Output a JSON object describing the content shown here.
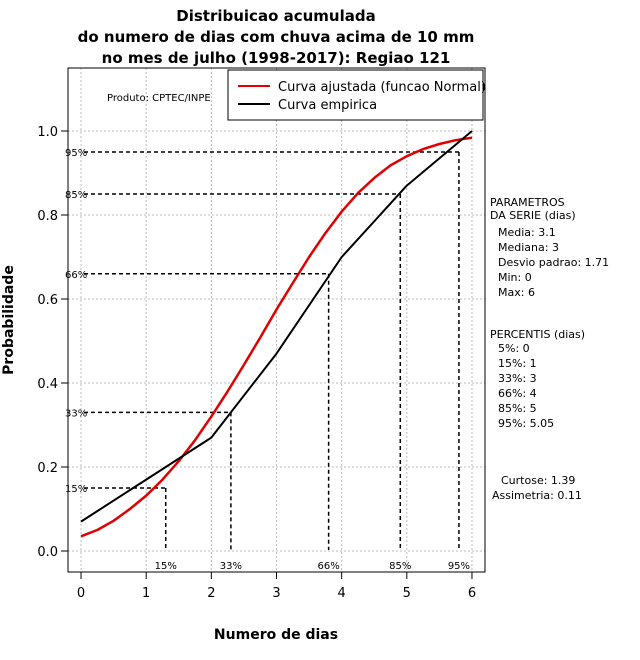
{
  "chart_data": {
    "type": "line",
    "title": [
      "Distribuicao acumulada",
      "do numero de dias com chuva acima de 10 mm",
      "no mes de julho (1998-2017): Regiao 121"
    ],
    "xlabel": "Numero de dias",
    "ylabel": "Probabilidade",
    "xlim": [
      -0.2,
      6.2
    ],
    "ylim": [
      -0.05,
      1.15
    ],
    "xticks": [
      0,
      1,
      2,
      3,
      4,
      5,
      6
    ],
    "xtick_labels": [
      "0",
      "1",
      "2",
      "3",
      "4",
      "5",
      "6"
    ],
    "yticks": [
      0.0,
      0.2,
      0.4,
      0.6,
      0.8,
      1.0
    ],
    "ytick_labels": [
      "0.0",
      "0.2",
      "0.4",
      "0.6",
      "0.8",
      "1.0"
    ],
    "grid": true,
    "producer": "Produto: CPTEC/INPE",
    "legend": {
      "placement": "top-right",
      "entries": [
        {
          "label": "Curva ajustada (funcao Normal)",
          "color": "#e00000"
        },
        {
          "label": "Curva empirica",
          "color": "#000000"
        }
      ]
    },
    "series": [
      {
        "name": "Curva ajustada (funcao Normal)",
        "color": "#e00000",
        "x": [
          0,
          0.25,
          0.5,
          0.75,
          1,
          1.25,
          1.5,
          1.75,
          2,
          2.25,
          2.5,
          2.75,
          3,
          3.25,
          3.5,
          3.75,
          4,
          4.25,
          4.5,
          4.75,
          5,
          5.25,
          5.5,
          5.75,
          6
        ],
        "y": [
          0.035,
          0.05,
          0.072,
          0.1,
          0.132,
          0.17,
          0.214,
          0.264,
          0.32,
          0.38,
          0.443,
          0.508,
          0.575,
          0.638,
          0.7,
          0.757,
          0.808,
          0.852,
          0.888,
          0.918,
          0.94,
          0.957,
          0.969,
          0.978,
          0.984
        ]
      },
      {
        "name": "Curva empirica",
        "color": "#000000",
        "x": [
          0,
          1,
          2,
          3,
          4,
          5,
          6
        ],
        "y": [
          0.07,
          0.17,
          0.27,
          0.47,
          0.7,
          0.87,
          1.0
        ]
      }
    ],
    "percentile_markers": [
      {
        "label": "15%",
        "x": 1.3,
        "y": 0.15
      },
      {
        "label": "33%",
        "x": 2.3,
        "y": 0.33
      },
      {
        "label": "66%",
        "x": 3.8,
        "y": 0.66
      },
      {
        "label": "85%",
        "x": 4.9,
        "y": 0.85
      },
      {
        "label": "95%",
        "x": 5.8,
        "y": 0.95
      }
    ],
    "side_panel": {
      "parametros_title": [
        "PARAMETROS",
        "DA SERIE (dias)"
      ],
      "parametros": [
        "Media: 3.1",
        "Mediana: 3",
        "Desvio padrao: 1.71",
        "Min: 0",
        "Max: 6"
      ],
      "percentis_title": "PERCENTIS (dias)",
      "percentis": [
        "5%: 0",
        "15%: 1",
        "33%: 3",
        "66%: 4",
        "85%: 5",
        "95%: 5.05"
      ],
      "curtose": "Curtose: 1.39",
      "assimetria": "Assimetria: 0.11"
    }
  }
}
